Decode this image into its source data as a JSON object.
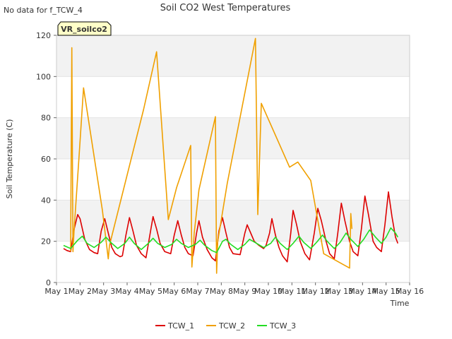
{
  "no_data_note": "No data for f_TCW_4",
  "chart_data": {
    "type": "line",
    "title": "Soil CO2 West Temperatures",
    "xlabel": "Time",
    "ylabel": "Soil Temperature (C)",
    "xlim": [
      1,
      16
    ],
    "ylim": [
      0,
      120
    ],
    "x_ticks": [
      1,
      2,
      3,
      4,
      5,
      6,
      7,
      8,
      9,
      10,
      11,
      12,
      13,
      14,
      15,
      16
    ],
    "x_tick_labels": [
      "May 1",
      "May 2",
      "May 3",
      "May 4",
      "May 5",
      "May 6",
      "May 7",
      "May 8",
      "May 9",
      "May 10",
      "May 11",
      "May 12",
      "May 13",
      "May 14",
      "May 15",
      "May 16"
    ],
    "y_ticks": [
      0,
      20,
      40,
      60,
      80,
      100,
      120
    ],
    "y_tick_labels": [
      "0",
      "20",
      "40",
      "60",
      "80",
      "100",
      "120"
    ],
    "grid": "horizontal bands",
    "legend_position": "bottom-center",
    "annotation_box": "VR_soilco2",
    "series": [
      {
        "name": "TCW_1",
        "color": "#dd0000",
        "points": [
          [
            1.3,
            16.5
          ],
          [
            1.45,
            15.5
          ],
          [
            1.6,
            15
          ],
          [
            1.75,
            26
          ],
          [
            1.9,
            33
          ],
          [
            2.0,
            31
          ],
          [
            2.2,
            21
          ],
          [
            2.4,
            16
          ],
          [
            2.6,
            14.5
          ],
          [
            2.75,
            14
          ],
          [
            2.9,
            25
          ],
          [
            3.05,
            31
          ],
          [
            3.2,
            24
          ],
          [
            3.35,
            17
          ],
          [
            3.5,
            14
          ],
          [
            3.7,
            12.5
          ],
          [
            3.8,
            13
          ],
          [
            3.95,
            23
          ],
          [
            4.1,
            31.5
          ],
          [
            4.25,
            25
          ],
          [
            4.4,
            18
          ],
          [
            4.6,
            14
          ],
          [
            4.8,
            12
          ],
          [
            4.95,
            22
          ],
          [
            5.1,
            32
          ],
          [
            5.25,
            26
          ],
          [
            5.4,
            19
          ],
          [
            5.6,
            15
          ],
          [
            5.85,
            14
          ],
          [
            6.0,
            23
          ],
          [
            6.15,
            30
          ],
          [
            6.3,
            23
          ],
          [
            6.45,
            17
          ],
          [
            6.6,
            14
          ],
          [
            6.8,
            13
          ],
          [
            6.95,
            24
          ],
          [
            7.05,
            30
          ],
          [
            7.2,
            22
          ],
          [
            7.4,
            16
          ],
          [
            7.6,
            12
          ],
          [
            7.75,
            10.5
          ],
          [
            7.9,
            25
          ],
          [
            8.05,
            31.5
          ],
          [
            8.2,
            24
          ],
          [
            8.35,
            17
          ],
          [
            8.5,
            14
          ],
          [
            8.8,
            13.5
          ],
          [
            9.0,
            24
          ],
          [
            9.1,
            28
          ],
          [
            9.25,
            24
          ],
          [
            9.4,
            20
          ],
          [
            9.6,
            18
          ],
          [
            9.8,
            16.5
          ],
          [
            9.9,
            18
          ],
          [
            10.05,
            24
          ],
          [
            10.15,
            31
          ],
          [
            10.3,
            23
          ],
          [
            10.45,
            17
          ],
          [
            10.6,
            13
          ],
          [
            10.8,
            10
          ],
          [
            10.95,
            24
          ],
          [
            11.05,
            35
          ],
          [
            11.2,
            28
          ],
          [
            11.35,
            20
          ],
          [
            11.55,
            14
          ],
          [
            11.75,
            11
          ],
          [
            11.95,
            24
          ],
          [
            12.1,
            36
          ],
          [
            12.25,
            30
          ],
          [
            12.45,
            20
          ],
          [
            12.6,
            14
          ],
          [
            12.8,
            11.5
          ],
          [
            12.95,
            24
          ],
          [
            13.1,
            38.5
          ],
          [
            13.25,
            30
          ],
          [
            13.45,
            20
          ],
          [
            13.6,
            15
          ],
          [
            13.8,
            13
          ],
          [
            13.95,
            26
          ],
          [
            14.1,
            42
          ],
          [
            14.25,
            33
          ],
          [
            14.45,
            20
          ],
          [
            14.6,
            17
          ],
          [
            14.8,
            15
          ],
          [
            14.95,
            28
          ],
          [
            15.1,
            44
          ],
          [
            15.25,
            32
          ],
          [
            15.4,
            22
          ],
          [
            15.5,
            19
          ]
        ]
      },
      {
        "name": "TCW_2",
        "color": "#f0a000",
        "points": [
          [
            1.6,
            15
          ],
          [
            1.65,
            114
          ],
          [
            1.7,
            15
          ],
          [
            1.75,
            26
          ],
          [
            1.95,
            60
          ],
          [
            2.15,
            94.5
          ],
          [
            2.95,
            35
          ],
          [
            3.2,
            11.5
          ],
          [
            3.25,
            18
          ],
          [
            4.7,
            84
          ],
          [
            5.25,
            112
          ],
          [
            5.75,
            30.5
          ],
          [
            6.1,
            46
          ],
          [
            6.7,
            66.5
          ],
          [
            6.75,
            7.5
          ],
          [
            6.85,
            24
          ],
          [
            7.05,
            45
          ],
          [
            7.75,
            80.5
          ],
          [
            7.8,
            4.5
          ],
          [
            7.85,
            20
          ],
          [
            8.25,
            48
          ],
          [
            9.45,
            118.5
          ],
          [
            9.55,
            33
          ],
          [
            9.7,
            87
          ],
          [
            10.9,
            56
          ],
          [
            11.25,
            58.5
          ],
          [
            11.8,
            49.5
          ],
          [
            12.35,
            14
          ],
          [
            13.45,
            7
          ],
          [
            13.5,
            33.5
          ],
          [
            13.55,
            26
          ]
        ]
      },
      {
        "name": "TCW_3",
        "color": "#22dd22",
        "points": [
          [
            1.3,
            18
          ],
          [
            1.6,
            16.5
          ],
          [
            1.9,
            20.5
          ],
          [
            2.1,
            22.5
          ],
          [
            2.3,
            19
          ],
          [
            2.6,
            17
          ],
          [
            2.9,
            19.5
          ],
          [
            3.1,
            22
          ],
          [
            3.3,
            19.5
          ],
          [
            3.6,
            16.5
          ],
          [
            3.9,
            19
          ],
          [
            4.1,
            22
          ],
          [
            4.3,
            19
          ],
          [
            4.6,
            16
          ],
          [
            4.9,
            19
          ],
          [
            5.1,
            21.5
          ],
          [
            5.3,
            19
          ],
          [
            5.6,
            17
          ],
          [
            5.9,
            18.5
          ],
          [
            6.1,
            21
          ],
          [
            6.3,
            19
          ],
          [
            6.6,
            17
          ],
          [
            6.9,
            18.5
          ],
          [
            7.1,
            20.5
          ],
          [
            7.3,
            18
          ],
          [
            7.6,
            15.5
          ],
          [
            7.8,
            14.5
          ],
          [
            8.05,
            20
          ],
          [
            8.2,
            21
          ],
          [
            8.4,
            18.5
          ],
          [
            8.7,
            16
          ],
          [
            9.0,
            18.5
          ],
          [
            9.2,
            21
          ],
          [
            9.5,
            19
          ],
          [
            9.8,
            17
          ],
          [
            10.1,
            19
          ],
          [
            10.3,
            22
          ],
          [
            10.5,
            19
          ],
          [
            10.8,
            16
          ],
          [
            11.05,
            19
          ],
          [
            11.3,
            22.5
          ],
          [
            11.5,
            19.5
          ],
          [
            11.8,
            16.5
          ],
          [
            12.05,
            19.5
          ],
          [
            12.3,
            23
          ],
          [
            12.5,
            20
          ],
          [
            12.8,
            16.5
          ],
          [
            13.05,
            19.5
          ],
          [
            13.3,
            24
          ],
          [
            13.5,
            21
          ],
          [
            13.8,
            17.5
          ],
          [
            14.05,
            21
          ],
          [
            14.3,
            25.5
          ],
          [
            14.55,
            22
          ],
          [
            14.8,
            19
          ],
          [
            15.0,
            22
          ],
          [
            15.2,
            26.5
          ],
          [
            15.4,
            24
          ],
          [
            15.5,
            22
          ]
        ]
      }
    ]
  }
}
